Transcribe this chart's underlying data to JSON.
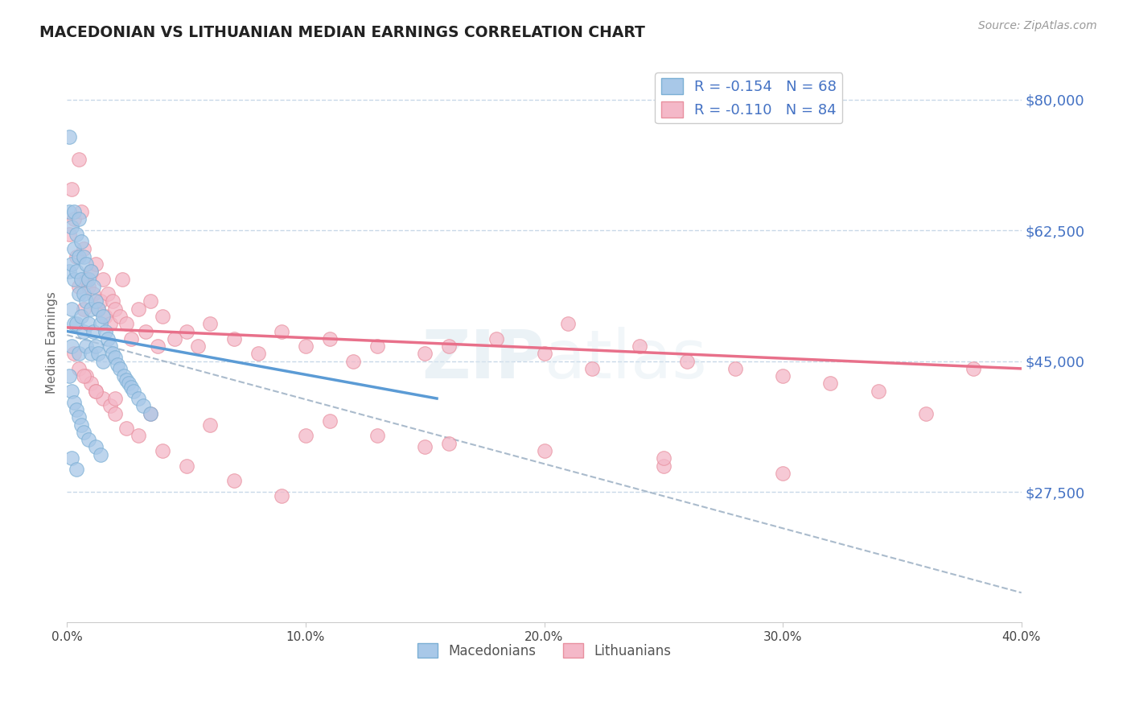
{
  "title": "MACEDONIAN VS LITHUANIAN MEDIAN EARNINGS CORRELATION CHART",
  "source": "Source: ZipAtlas.com",
  "ylabel": "Median Earnings",
  "xlim": [
    0.0,
    0.4
  ],
  "ylim": [
    10000,
    85000
  ],
  "yticks": [
    27500,
    45000,
    62500,
    80000
  ],
  "ytick_labels": [
    "$27,500",
    "$45,000",
    "$62,500",
    "$80,000"
  ],
  "xticks": [
    0.0,
    0.1,
    0.2,
    0.3,
    0.4
  ],
  "xtick_labels": [
    "0.0%",
    "10.0%",
    "20.0%",
    "30.0%",
    "40.0%"
  ],
  "macedonian_color": "#a8c8e8",
  "lithuanian_color": "#f4b8c8",
  "macedonian_edge": "#7bafd4",
  "lithuanian_edge": "#e8909f",
  "blue_line_color": "#5b9bd5",
  "pink_line_color": "#e8708a",
  "gray_line_color": "#aabbcc",
  "label_color": "#4472c4",
  "r_macedonian": -0.154,
  "n_macedonian": 68,
  "r_lithuanian": -0.11,
  "n_lithuanian": 84,
  "legend_macedonians": "Macedonians",
  "legend_lithuanians": "Lithuanians",
  "blue_line_x0": 0.0,
  "blue_line_y0": 49000,
  "blue_line_x1": 0.155,
  "blue_line_y1": 40000,
  "pink_line_x0": 0.0,
  "pink_line_y0": 49500,
  "pink_line_x1": 0.4,
  "pink_line_y1": 44000,
  "gray_line_x0": 0.0,
  "gray_line_y0": 48500,
  "gray_line_x1": 0.4,
  "gray_line_y1": 14000,
  "macedonian_x": [
    0.001,
    0.001,
    0.001,
    0.002,
    0.002,
    0.002,
    0.002,
    0.003,
    0.003,
    0.003,
    0.003,
    0.004,
    0.004,
    0.004,
    0.005,
    0.005,
    0.005,
    0.005,
    0.006,
    0.006,
    0.006,
    0.007,
    0.007,
    0.007,
    0.008,
    0.008,
    0.008,
    0.009,
    0.009,
    0.01,
    0.01,
    0.01,
    0.011,
    0.011,
    0.012,
    0.012,
    0.013,
    0.013,
    0.014,
    0.015,
    0.015,
    0.016,
    0.017,
    0.018,
    0.019,
    0.02,
    0.021,
    0.022,
    0.024,
    0.025,
    0.026,
    0.027,
    0.028,
    0.03,
    0.032,
    0.035,
    0.001,
    0.002,
    0.003,
    0.004,
    0.005,
    0.006,
    0.007,
    0.009,
    0.012,
    0.014,
    0.002,
    0.004
  ],
  "macedonian_y": [
    75000,
    65000,
    57000,
    63000,
    58000,
    52000,
    47000,
    65000,
    60000,
    56000,
    50000,
    62000,
    57000,
    50000,
    64000,
    59000,
    54000,
    46000,
    61000,
    56000,
    51000,
    59000,
    54000,
    49000,
    58000,
    53000,
    47000,
    56000,
    50000,
    57000,
    52000,
    46000,
    55000,
    49000,
    53000,
    47000,
    52000,
    46000,
    50000,
    51000,
    45000,
    49000,
    48000,
    47000,
    46000,
    45500,
    44500,
    44000,
    43000,
    42500,
    42000,
    41500,
    41000,
    40000,
    39000,
    38000,
    43000,
    41000,
    39500,
    38500,
    37500,
    36500,
    35500,
    34500,
    33500,
    32500,
    32000,
    30500
  ],
  "lithuanian_x": [
    0.001,
    0.002,
    0.003,
    0.004,
    0.005,
    0.005,
    0.006,
    0.007,
    0.007,
    0.008,
    0.009,
    0.01,
    0.011,
    0.012,
    0.013,
    0.014,
    0.015,
    0.016,
    0.017,
    0.018,
    0.019,
    0.02,
    0.022,
    0.023,
    0.025,
    0.027,
    0.03,
    0.033,
    0.035,
    0.038,
    0.04,
    0.045,
    0.05,
    0.055,
    0.06,
    0.07,
    0.08,
    0.09,
    0.1,
    0.11,
    0.12,
    0.13,
    0.15,
    0.16,
    0.18,
    0.2,
    0.21,
    0.22,
    0.24,
    0.26,
    0.28,
    0.3,
    0.32,
    0.34,
    0.36,
    0.38,
    0.003,
    0.005,
    0.008,
    0.01,
    0.012,
    0.015,
    0.018,
    0.02,
    0.025,
    0.03,
    0.04,
    0.05,
    0.07,
    0.09,
    0.11,
    0.13,
    0.16,
    0.2,
    0.25,
    0.3,
    0.007,
    0.012,
    0.02,
    0.035,
    0.06,
    0.1,
    0.15,
    0.25
  ],
  "lithuanian_y": [
    62000,
    68000,
    64000,
    59000,
    72000,
    55000,
    65000,
    60000,
    52000,
    56000,
    55000,
    57000,
    54000,
    58000,
    52000,
    53000,
    56000,
    51000,
    54000,
    50000,
    53000,
    52000,
    51000,
    56000,
    50000,
    48000,
    52000,
    49000,
    53000,
    47000,
    51000,
    48000,
    49000,
    47000,
    50000,
    48000,
    46000,
    49000,
    47000,
    48000,
    45000,
    47000,
    46000,
    47000,
    48000,
    46000,
    50000,
    44000,
    47000,
    45000,
    44000,
    43000,
    42000,
    41000,
    38000,
    44000,
    46000,
    44000,
    43000,
    42000,
    41000,
    40000,
    39000,
    38000,
    36000,
    35000,
    33000,
    31000,
    29000,
    27000,
    37000,
    35000,
    34000,
    33000,
    31000,
    30000,
    43000,
    41000,
    40000,
    38000,
    36500,
    35000,
    33500,
    32000
  ]
}
